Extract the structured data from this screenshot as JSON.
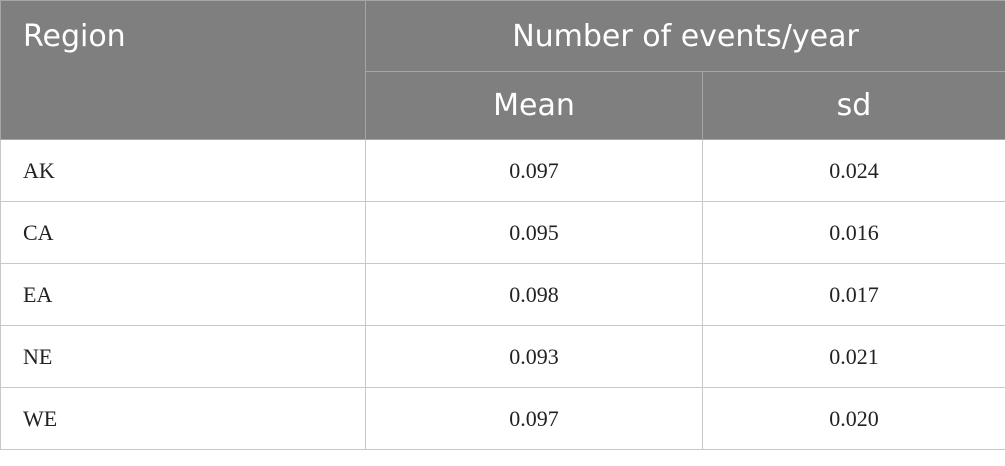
{
  "header": {
    "region": "Region",
    "group": "Number of events/year",
    "columns": [
      "Mean",
      "sd"
    ]
  },
  "table": {
    "rows": [
      [
        "AK",
        "0.097",
        "0.024"
      ],
      [
        "CA",
        "0.095",
        "0.016"
      ],
      [
        "EA",
        "0.098",
        "0.017"
      ],
      [
        "NE",
        "0.093",
        "0.021"
      ],
      [
        "WE",
        "0.097",
        "0.020"
      ]
    ]
  }
}
